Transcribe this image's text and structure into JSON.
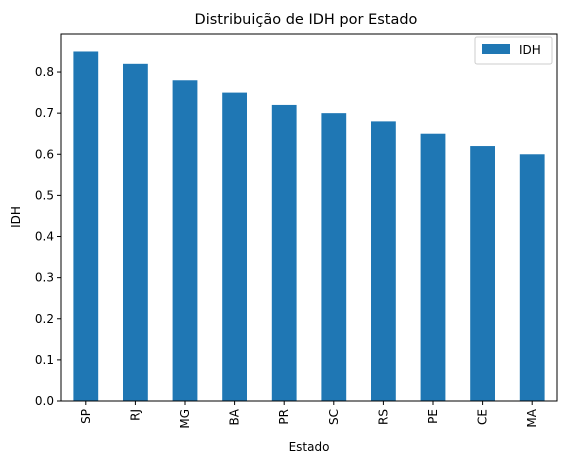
{
  "chart_data": {
    "type": "bar",
    "title": "Distribuição de IDH por Estado",
    "xlabel": "Estado",
    "ylabel": "IDH",
    "categories": [
      "SP",
      "RJ",
      "MG",
      "BA",
      "PR",
      "SC",
      "RS",
      "PE",
      "CE",
      "MA"
    ],
    "series": [
      {
        "name": "IDH",
        "values": [
          0.85,
          0.82,
          0.78,
          0.75,
          0.72,
          0.7,
          0.68,
          0.65,
          0.62,
          0.6
        ]
      }
    ],
    "ylim": [
      0,
      0.8925
    ],
    "yticks": [
      0.0,
      0.1,
      0.2,
      0.3,
      0.4,
      0.5,
      0.6,
      0.7,
      0.8
    ],
    "grid": false,
    "legend_position": "top-right",
    "bar_color": "#1f77b4"
  }
}
